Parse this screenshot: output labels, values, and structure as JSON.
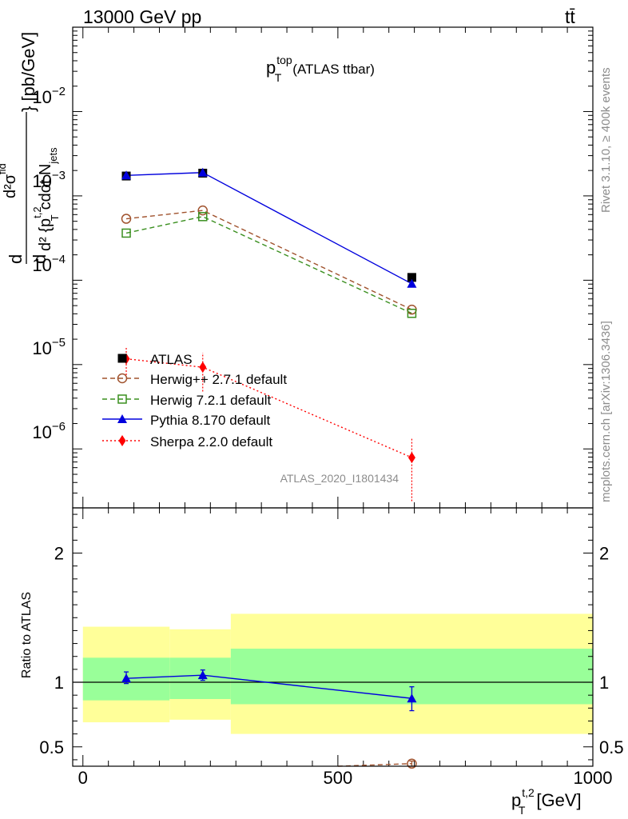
{
  "header": {
    "left": "13000 GeV pp",
    "right": "tt̄"
  },
  "side_labels": {
    "rivet": "Rivet 3.1.10, ≥ 400k events",
    "mcplots": "mcplots.cern.ch [arXiv:1306.3436]"
  },
  "colors": {
    "ATLAS": "#000000",
    "Herwig++": "#a0522d",
    "Herwig7": "#3a8f1f",
    "Pythia": "#0000dd",
    "Sherpa": "#ff0000",
    "band_inner": "#99ff99",
    "band_outer": "#ffff99"
  },
  "chart_data": [
    {
      "type": "line",
      "panel": "main",
      "title_main": "p",
      "title_sup": "top",
      "title_sub": "T",
      "title_suffix": "(ATLAS ttbar)",
      "analysis_id": "ATLAS_2020_I1801434",
      "ylabel": "d²σ^{fid} / d²{p_T^{t,2} \\cdot N_jets} [pb/GeV]",
      "ylabel_parts": {
        "d_top": "d",
        "d2sigma": "d²σ",
        "fid": "fid",
        "brace_unit": "} [pb/GeV]",
        "d_bottom": "d",
        "d2p": "d² {p",
        "t2": "t,2",
        "T": "T",
        "cdotN": "cdot N",
        "jets": "jets"
      },
      "yscale": "log",
      "ylim": [
        2e-07,
        0.1
      ],
      "xlim": [
        -20,
        1000
      ],
      "y_tick_labels": [
        {
          "base": "10",
          "exp": "−2",
          "value": 0.01
        },
        {
          "base": "10",
          "exp": "−3",
          "value": 0.001
        },
        {
          "base": "10",
          "exp": "−4",
          "value": 0.0001
        },
        {
          "base": "10",
          "exp": "−5",
          "value": 1e-05
        },
        {
          "base": "10",
          "exp": "−6",
          "value": 1e-06
        }
      ],
      "legend_position": "bottom-left",
      "series": [
        {
          "name": "ATLAS",
          "key": "ATLAS",
          "x": [
            85,
            235,
            645
          ],
          "values": [
            0.00172,
            0.00186,
            0.000108
          ],
          "marker": "square-filled",
          "line": "none"
        },
        {
          "name": "Herwig++ 2.7.1 default",
          "key": "Herwig++",
          "x": [
            85,
            235,
            645
          ],
          "values": [
            0.000535,
            0.000672,
            4.48e-05
          ],
          "marker": "circle-open",
          "line": "dashed"
        },
        {
          "name": "Herwig 7.2.1 default",
          "key": "Herwig7",
          "x": [
            85,
            235,
            645
          ],
          "values": [
            0.000362,
            0.000568,
            4.05e-05
          ],
          "marker": "square-open",
          "line": "dashed"
        },
        {
          "name": "Pythia 8.170 default",
          "key": "Pythia",
          "x": [
            85,
            235,
            645
          ],
          "values": [
            0.00175,
            0.00189,
            9.08e-05
          ],
          "marker": "triangle-filled",
          "line": "solid"
        },
        {
          "name": "Sherpa 2.2.0 default",
          "key": "Sherpa",
          "x": [
            85,
            235,
            645
          ],
          "values": [
            1.17e-05,
            9.3e-06,
            7.9e-07
          ],
          "err_low": [
            7.5e-06,
            4.8e-06,
            2.4e-07
          ],
          "err_high": [
            1.62e-05,
            1.38e-05,
            1.35e-06
          ],
          "marker": "diamond-filled",
          "line": "dotted"
        }
      ]
    },
    {
      "type": "line",
      "panel": "ratio",
      "ylabel": "Ratio to ATLAS",
      "xlabel_main": "p",
      "xlabel_sup": "t,2",
      "xlabel_sub": "T",
      "xlabel_unit": "[GeV]",
      "xlim": [
        -20,
        1000
      ],
      "ylim": [
        0.35,
        2.35
      ],
      "x_ticks": [
        0,
        500,
        1000
      ],
      "x_tick_labels": [
        "0",
        "500",
        "1000"
      ],
      "y_ticks": [
        0.5,
        1,
        2
      ],
      "y_tick_labels": [
        "0.5",
        "1",
        "2"
      ],
      "bands": [
        {
          "x0": 0,
          "x1": 170,
          "inner": [
            0.86,
            1.19
          ],
          "outer": [
            0.69,
            1.43
          ]
        },
        {
          "x0": 170,
          "x1": 290,
          "inner": [
            0.87,
            1.19
          ],
          "outer": [
            0.71,
            1.41
          ]
        },
        {
          "x0": 290,
          "x1": 1000,
          "inner": [
            0.83,
            1.26
          ],
          "outer": [
            0.6,
            1.53
          ]
        }
      ],
      "series": [
        {
          "name": "Pythia 8.170 default",
          "key": "Pythia",
          "x": [
            85,
            235,
            645
          ],
          "values": [
            1.03,
            1.055,
            0.875
          ],
          "err_low": [
            0.99,
            1.015,
            0.78
          ],
          "err_high": [
            1.08,
            1.095,
            0.965
          ],
          "marker": "triangle-filled",
          "line": "solid"
        },
        {
          "name": "Herwig++ 2.7.1 default",
          "key": "Herwig++",
          "x": [
            500,
            645
          ],
          "values": [
            0.35,
            0.37
          ],
          "err_low": [
            null,
            0.35
          ],
          "err_high": [
            null,
            0.39
          ],
          "marker": "circle-open",
          "line": "dashed"
        }
      ]
    }
  ]
}
